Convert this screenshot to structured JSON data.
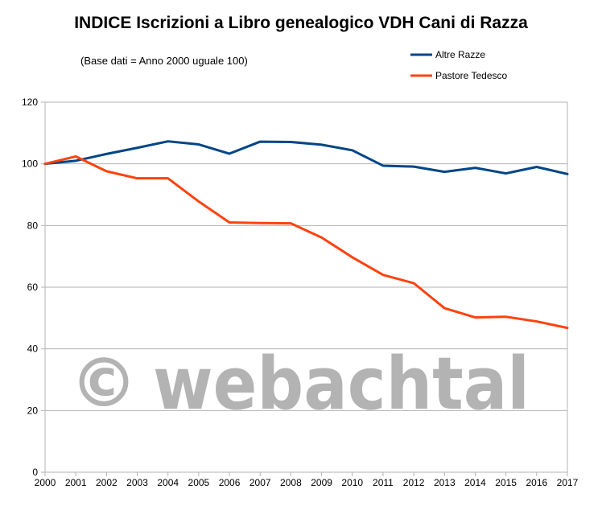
{
  "colors": {
    "altre_razze": "#004586",
    "pastore_tedesco": "#ff420e",
    "grid": "#b3b3b3",
    "watermark": "#b3b3b3"
  },
  "watermark": {
    "symbol": "©",
    "text": "webachtal"
  },
  "chart_data": {
    "type": "line",
    "title": "INDICE Iscrizioni a Libro genealogico VDH Cani di Razza",
    "subtitle": "(Base dati = Anno 2000 uguale 100)",
    "xlabel": "",
    "ylabel": "",
    "ylim": [
      0,
      120
    ],
    "yticks": [
      0,
      20,
      40,
      60,
      80,
      100,
      120
    ],
    "grid": true,
    "legend_position": "top-right",
    "categories": [
      "2000",
      "2001",
      "2002",
      "2003",
      "2004",
      "2005",
      "2006",
      "2007",
      "2008",
      "2009",
      "2010",
      "2011",
      "2012",
      "2013",
      "2014",
      "2015",
      "2016",
      "2017"
    ],
    "series": [
      {
        "name": "Altre Razze",
        "color": "#004586",
        "values": [
          100,
          101,
          103.2,
          105.2,
          107.3,
          106.3,
          103.3,
          107.2,
          107.1,
          106.2,
          104.4,
          99.4,
          99.1,
          97.4,
          98.7,
          96.9,
          99,
          96.7
        ]
      },
      {
        "name": "Pastore Tedesco",
        "color": "#ff420e",
        "values": [
          100,
          102.4,
          97.6,
          95.3,
          95.3,
          87.8,
          81,
          80.8,
          80.7,
          76.1,
          69.7,
          64,
          61.3,
          53.2,
          50.2,
          50.4,
          48.9,
          46.8
        ]
      }
    ]
  }
}
